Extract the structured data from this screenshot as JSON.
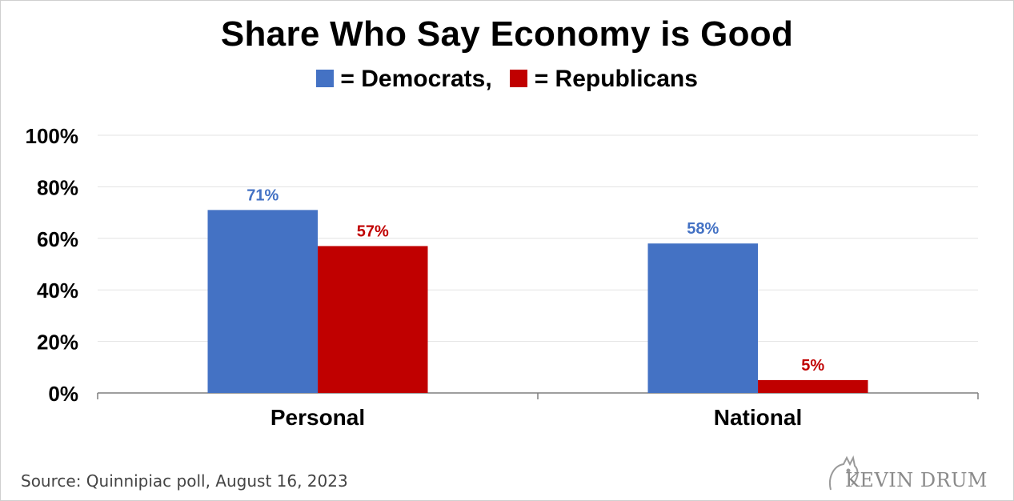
{
  "chart_data": {
    "type": "bar",
    "title": "Share Who Say Economy is Good",
    "legend": {
      "items": [
        {
          "label": "= Democrats,",
          "color": "#4472C4"
        },
        {
          "label": "= Republicans",
          "color": "#C00000"
        }
      ],
      "placement": "top-center"
    },
    "categories": [
      "Personal",
      "National"
    ],
    "series": [
      {
        "name": "Democrats",
        "color": "#4472C4",
        "values": [
          71,
          58
        ],
        "labels": [
          "71%",
          "58%"
        ]
      },
      {
        "name": "Republicans",
        "color": "#C00000",
        "values": [
          57,
          5
        ],
        "labels": [
          "57%",
          "5%"
        ]
      }
    ],
    "yticks": [
      0,
      20,
      40,
      60,
      80,
      100
    ],
    "ytick_labels": [
      "0%",
      "20%",
      "40%",
      "60%",
      "80%",
      "100%"
    ],
    "ylim": [
      0,
      100
    ],
    "grid": true
  },
  "source": "Source: Quinnipiac poll, August 16, 2023",
  "brand": "KEVIN DRUM"
}
